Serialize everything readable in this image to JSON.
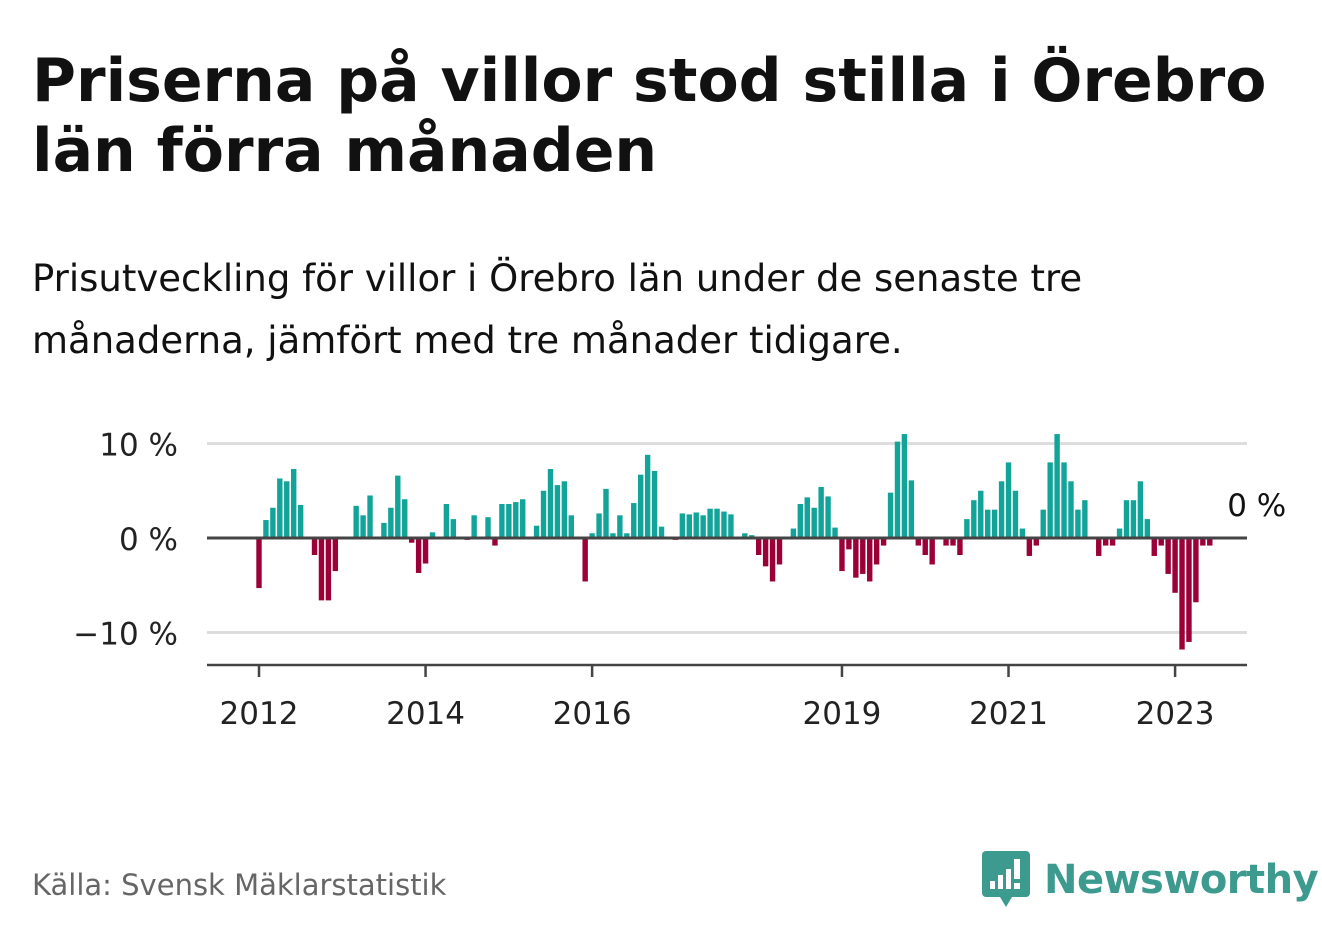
{
  "header": {
    "title": "Priserna på villor stod stilla i Örebro län förra månaden",
    "subtitle": "Prisutveckling för villor i Örebro län under de senaste tre månaderna, jämfört med tre månader tidigare."
  },
  "footer": {
    "source": "Källa: Svensk Mäklarstatistik",
    "brand": "Newsworthy"
  },
  "colors": {
    "positive": "#12a399",
    "negative": "#9b0036",
    "grid": "#dddddd",
    "axis": "#444444",
    "brand": "#3d9a8f"
  },
  "chart_data": {
    "type": "bar",
    "title": "",
    "xlabel": "",
    "ylabel": "",
    "y_unit": "%",
    "ylim": [
      -13.5,
      11.5
    ],
    "y_ticks": [
      {
        "value": 10,
        "label": "10 %"
      },
      {
        "value": 0,
        "label": "0 %"
      },
      {
        "value": -10,
        "label": "−10 %"
      }
    ],
    "x_ticks": [
      {
        "date": "2012-01",
        "label": "2012"
      },
      {
        "date": "2014-01",
        "label": "2014"
      },
      {
        "date": "2016-01",
        "label": "2016"
      },
      {
        "date": "2019-01",
        "label": "2019"
      },
      {
        "date": "2021-01",
        "label": "2021"
      },
      {
        "date": "2023-01",
        "label": "2023"
      }
    ],
    "grid": true,
    "last_value_label": "0 %",
    "series": [
      {
        "start": "2012-01",
        "frequency": "monthly",
        "values": [
          -5.3,
          1.9,
          3.2,
          6.3,
          6.0,
          7.3,
          3.5,
          0,
          -1.8,
          -6.6,
          -6.6,
          -3.5,
          0,
          0,
          3.4,
          2.4,
          4.5,
          0,
          1.6,
          3.2,
          6.6,
          4.1,
          -0.5,
          -3.7,
          -2.7,
          0.6,
          0,
          3.6,
          2.0,
          0,
          -0.2,
          2.4,
          0,
          2.2,
          -0.8,
          3.6,
          3.6,
          3.8,
          4.1,
          0,
          1.3,
          5.0,
          7.3,
          5.6,
          6.0,
          2.4,
          0,
          -4.6,
          0.5,
          2.6,
          5.2,
          0.5,
          2.4,
          0.5,
          3.7,
          6.7,
          8.8,
          7.1,
          1.2,
          0,
          -0.2,
          2.6,
          2.5,
          2.7,
          2.4,
          3.1,
          3.1,
          2.8,
          2.5,
          0,
          0.5,
          0.3,
          -1.8,
          -3.0,
          -4.6,
          -2.8,
          0,
          1.0,
          3.6,
          4.3,
          3.2,
          5.4,
          4.4,
          1.1,
          -3.5,
          -1.2,
          -4.2,
          -3.8,
          -4.6,
          -2.8,
          -0.8,
          4.8,
          10.2,
          11.0,
          6.1,
          -0.8,
          -1.8,
          -2.8,
          0,
          -0.8,
          -0.8,
          -1.8,
          2.0,
          4.0,
          5.0,
          3.0,
          3.0,
          6.0,
          8.0,
          5.0,
          1.0,
          -1.9,
          -0.8,
          3.0,
          8.0,
          11.0,
          8.0,
          6.0,
          3.0,
          4.0,
          0,
          -1.9,
          -0.8,
          -0.8,
          1.0,
          4.0,
          4.0,
          6.0,
          2.0,
          -1.9,
          -0.8,
          -3.8,
          -5.8,
          -11.8,
          -11.0,
          -6.8,
          -0.8,
          -0.8,
          0
        ]
      }
    ]
  }
}
